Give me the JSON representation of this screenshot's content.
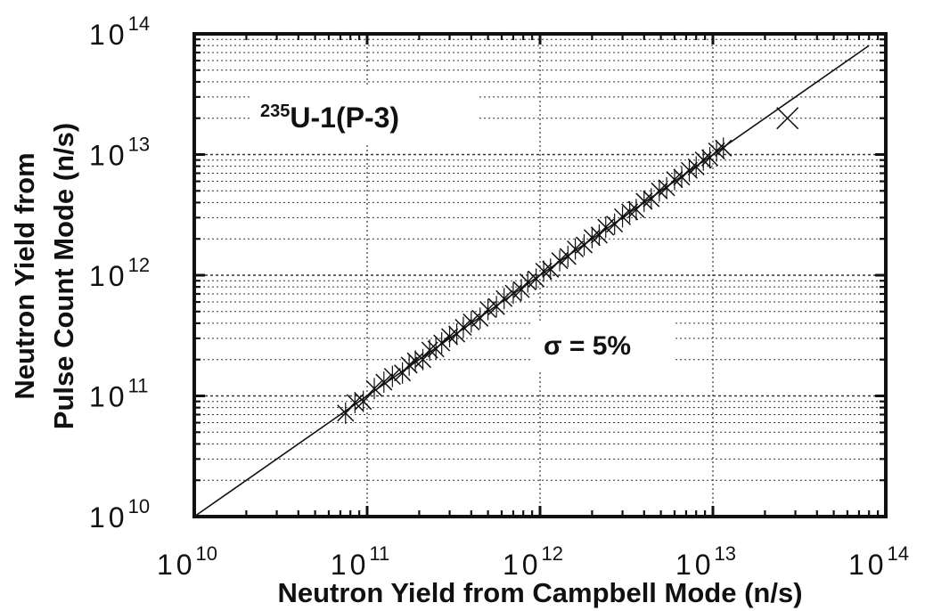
{
  "chart_data": {
    "type": "scatter",
    "title": "",
    "xlabel": "Neutron Yield from Campbell Mode (n/s)",
    "ylabel_lines": [
      "Neutron Yield from",
      "Pulse Count Mode (n/s)"
    ],
    "xscale": "log",
    "yscale": "log",
    "xlim": [
      10000000000.0,
      100000000000000.0
    ],
    "ylim": [
      10000000000.0,
      100000000000000.0
    ],
    "grid": true,
    "x_ticks": [
      {
        "base": "10",
        "exp": "10"
      },
      {
        "base": "10",
        "exp": "11"
      },
      {
        "base": "10",
        "exp": "12"
      },
      {
        "base": "10",
        "exp": "13"
      },
      {
        "base": "10",
        "exp": "14"
      }
    ],
    "y_ticks": [
      {
        "base": "10",
        "exp": "10"
      },
      {
        "base": "10",
        "exp": "11"
      },
      {
        "base": "10",
        "exp": "12"
      },
      {
        "base": "10",
        "exp": "13"
      },
      {
        "base": "10",
        "exp": "14"
      }
    ],
    "annotations": {
      "sample": {
        "sup": "235",
        "main": "U-1",
        "suffix": "(P-3)"
      },
      "sigma": "σ = 5%"
    },
    "reference_line": {
      "label": "",
      "x": [
        10000000000.0,
        80000000000000.0
      ],
      "y": [
        10000000000.0,
        80000000000000.0
      ]
    },
    "series": [
      {
        "marker": "x",
        "points": [
          [
            75000000000.0,
            72000000000.0
          ],
          [
            85000000000.0,
            88000000000.0
          ],
          [
            95000000000.0,
            90000000000.0
          ],
          [
            110000000000.0,
            115000000000.0
          ],
          [
            125000000000.0,
            130000000000.0
          ],
          [
            140000000000.0,
            145000000000.0
          ],
          [
            160000000000.0,
            155000000000.0
          ],
          [
            175000000000.0,
            180000000000.0
          ],
          [
            190000000000.0,
            195000000000.0
          ],
          [
            210000000000.0,
            200000000000.0
          ],
          [
            230000000000.0,
            240000000000.0
          ],
          [
            250000000000.0,
            245000000000.0
          ],
          [
            270000000000.0,
            275000000000.0
          ],
          [
            300000000000.0,
            310000000000.0
          ],
          [
            330000000000.0,
            325000000000.0
          ],
          [
            360000000000.0,
            370000000000.0
          ],
          [
            400000000000.0,
            410000000000.0
          ],
          [
            450000000000.0,
            440000000000.0
          ],
          [
            500000000000.0,
            520000000000.0
          ],
          [
            560000000000.0,
            550000000000.0
          ],
          [
            620000000000.0,
            640000000000.0
          ],
          [
            700000000000.0,
            710000000000.0
          ],
          [
            780000000000.0,
            760000000000.0
          ],
          [
            850000000000.0,
            880000000000.0
          ],
          [
            950000000000.0,
            930000000000.0
          ],
          [
            1050000000000.0,
            1080000000000.0
          ],
          [
            1150000000000.0,
            1120000000000.0
          ],
          [
            1300000000000.0,
            1320000000000.0
          ],
          [
            1450000000000.0,
            1430000000000.0
          ],
          [
            1600000000000.0,
            1650000000000.0
          ],
          [
            1800000000000.0,
            1780000000000.0
          ],
          [
            2000000000000.0,
            2050000000000.0
          ],
          [
            2200000000000.0,
            2150000000000.0
          ],
          [
            2400000000000.0,
            2500000000000.0
          ],
          [
            2700000000000.0,
            2650000000000.0
          ],
          [
            3000000000000.0,
            3050000000000.0
          ],
          [
            3300000000000.0,
            3350000000000.0
          ],
          [
            3600000000000.0,
            3500000000000.0
          ],
          [
            4000000000000.0,
            4100000000000.0
          ],
          [
            4400000000000.0,
            4300000000000.0
          ],
          [
            4900000000000.0,
            5000000000000.0
          ],
          [
            5400000000000.0,
            5300000000000.0
          ],
          [
            6000000000000.0,
            6200000000000.0
          ],
          [
            6600000000000.0,
            6500000000000.0
          ],
          [
            7300000000000.0,
            7400000000000.0
          ],
          [
            8000000000000.0,
            7900000000000.0
          ],
          [
            8800000000000.0,
            9000000000000.0
          ],
          [
            9600000000000.0,
            9400000000000.0
          ],
          [
            10500000000000.0,
            10700000000000.0
          ],
          [
            11500000000000.0,
            11300000000000.0
          ],
          [
            27000000000000.0,
            20000000000000.0
          ]
        ]
      }
    ]
  }
}
